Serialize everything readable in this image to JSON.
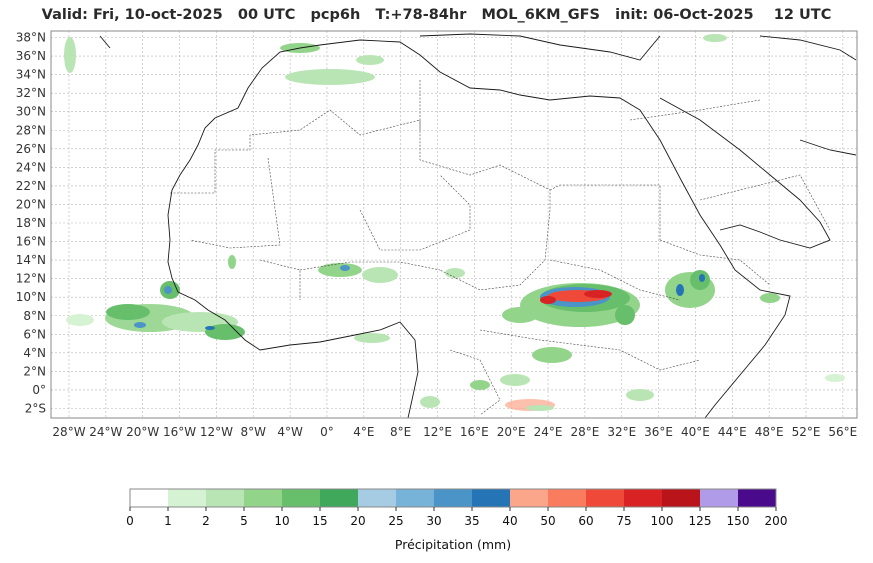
{
  "header": {
    "title": "Valid: Fri, 10-oct-2025   00 UTC   pcp6h   T:+78-84hr   MOL_6KM_GFS   init: 06-Oct-2025    12 UTC"
  },
  "map": {
    "lat_labels": [
      "38°N",
      "36°N",
      "34°N",
      "32°N",
      "30°N",
      "28°N",
      "26°N",
      "24°N",
      "22°N",
      "20°N",
      "18°N",
      "16°N",
      "14°N",
      "12°N",
      "10°N",
      "8°N",
      "6°N",
      "4°N",
      "2°N",
      "0°",
      "2°S"
    ],
    "lon_labels": [
      "28°W",
      "24°W",
      "20°W",
      "16°W",
      "12°W",
      "8°W",
      "4°W",
      "0°",
      "4°E",
      "8°E",
      "12°E",
      "16°E",
      "20°E",
      "24°E",
      "28°E",
      "32°E",
      "36°E",
      "40°E",
      "44°E",
      "48°E",
      "52°E",
      "56°E"
    ],
    "grid": true,
    "colors": {
      "coast": "#1a1a1a",
      "border": "#444444",
      "grid": "#b4b4b4"
    }
  },
  "colorbar": {
    "label": "Précipitation (mm)",
    "ticks": [
      "0",
      "1",
      "2",
      "5",
      "10",
      "15",
      "20",
      "25",
      "30",
      "35",
      "40",
      "50",
      "60",
      "75",
      "100",
      "125",
      "150",
      "200"
    ],
    "colors": [
      "#ffffff",
      "#d5f2d2",
      "#b9e5b4",
      "#93d48b",
      "#68bf6b",
      "#3fa85b",
      "#a6cce3",
      "#77b2d9",
      "#4a94c7",
      "#2574b6",
      "#fba58a",
      "#f87c5d",
      "#ef4a39",
      "#d82224",
      "#b8141a",
      "#b09be8",
      "#4a0a8c"
    ]
  }
}
